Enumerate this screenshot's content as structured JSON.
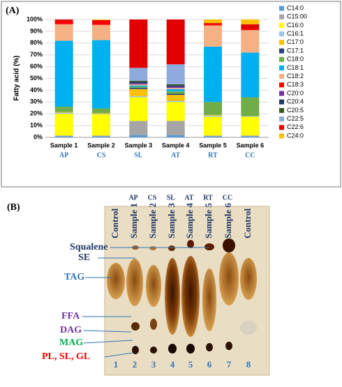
{
  "chart_data": {
    "type": "stacked_bar",
    "panel_label": "(A)",
    "y_label": "Fatty acid (%)",
    "categories": [
      "Sample 1",
      "Sample 2",
      "Sample 3",
      "Sample 4",
      "Sample 5",
      "Sample 6"
    ],
    "category_codes": [
      "AP",
      "CS",
      "SL",
      "AT",
      "RT",
      "CC"
    ],
    "ylim": [
      0,
      100
    ],
    "yticks": [
      {
        "value": 0,
        "label": "0%"
      },
      {
        "value": 10,
        "label": "10%"
      },
      {
        "value": 20,
        "label": "20%"
      },
      {
        "value": 30,
        "label": "30%"
      },
      {
        "value": 40,
        "label": "40%"
      },
      {
        "value": 50,
        "label": "50%"
      },
      {
        "value": 60,
        "label": "60%"
      },
      {
        "value": 70,
        "label": "70%"
      },
      {
        "value": 80,
        "label": "80%"
      },
      {
        "value": 90,
        "label": "90%"
      },
      {
        "value": 100,
        "label": "100%"
      }
    ],
    "grid": true,
    "series": [
      {
        "name": "C14:0",
        "color": "#5b9bd5",
        "values": [
          1,
          1,
          2,
          2,
          1,
          1
        ]
      },
      {
        "name": "C15:00",
        "color": "#a5a5a5",
        "values": [
          0.5,
          0.5,
          12,
          12,
          0.5,
          0.5
        ]
      },
      {
        "name": "C16:0",
        "color": "#ffff00",
        "values": [
          18.5,
          18,
          20,
          16,
          16,
          16
        ]
      },
      {
        "name": "C16:1",
        "color": "#9dc3e6",
        "values": [
          1,
          0.5,
          1,
          1,
          1,
          0.5
        ]
      },
      {
        "name": "C17:0",
        "color": "#ffc000",
        "values": [
          0.5,
          0.5,
          6,
          5,
          0.5,
          0
        ]
      },
      {
        "name": "C17:1",
        "color": "#264478",
        "values": [
          0,
          0,
          1,
          1,
          0,
          0
        ]
      },
      {
        "name": "C18:0",
        "color": "#70ad47",
        "values": [
          4.5,
          4,
          1,
          2,
          11,
          16
        ]
      },
      {
        "name": "C18:1",
        "color": "#00b0f0",
        "values": [
          56,
          58,
          1,
          2,
          47,
          38
        ]
      },
      {
        "name": "C18:2",
        "color": "#f4b183",
        "values": [
          14,
          13,
          1,
          1,
          18,
          19
        ]
      },
      {
        "name": "C18:3",
        "color": "#ff0000",
        "values": [
          3,
          3,
          0,
          0,
          1,
          1
        ]
      },
      {
        "name": "C20:0",
        "color": "#7030a0",
        "values": [
          0,
          0,
          1,
          1,
          0,
          0
        ]
      },
      {
        "name": "C20:4",
        "color": "#203864",
        "values": [
          0,
          0,
          1,
          1,
          0,
          0
        ]
      },
      {
        "name": "C20:5",
        "color": "#375623",
        "values": [
          0,
          0,
          1,
          1,
          0,
          0
        ]
      },
      {
        "name": "C22:5",
        "color": "#8faadc",
        "values": [
          0,
          0,
          11,
          17,
          0,
          0
        ]
      },
      {
        "name": "C22:6",
        "color": "#e00000",
        "values": [
          1,
          1,
          41,
          38,
          1,
          4
        ]
      },
      {
        "name": "C24:0",
        "color": "#ffc000",
        "values": [
          0,
          0.5,
          0,
          0,
          3,
          4
        ]
      }
    ]
  },
  "tlc": {
    "panel_label": "(B)",
    "lanes": [
      {
        "number": "1",
        "name": "Control"
      },
      {
        "number": "2",
        "name": "Sample 1",
        "code": "AP"
      },
      {
        "number": "3",
        "name": "Sample 2",
        "code": "CS"
      },
      {
        "number": "4",
        "name": "Sample 3",
        "code": "SL"
      },
      {
        "number": "5",
        "name": "Sample 4",
        "code": "AT"
      },
      {
        "number": "6",
        "name": "Sample 5",
        "code": "RT"
      },
      {
        "number": "7",
        "name": "Sample 6",
        "code": "CC"
      },
      {
        "number": "8",
        "name": "Control"
      }
    ],
    "bands": [
      "Squalene",
      "SE",
      "TAG",
      "FFA",
      "DAG",
      "MAG",
      "PL, SL, GL"
    ]
  }
}
